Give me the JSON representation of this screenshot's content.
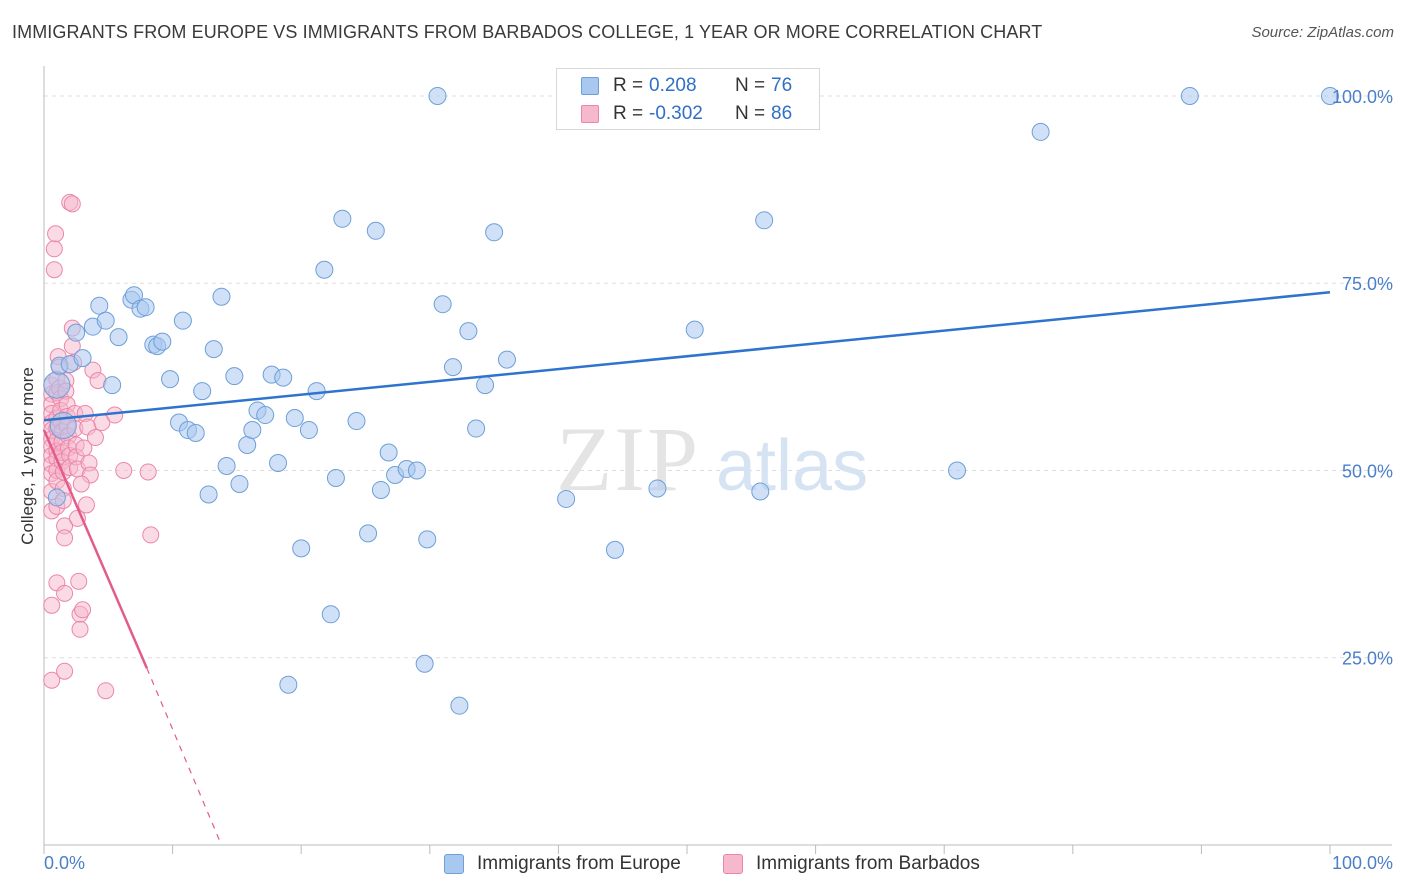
{
  "header": {
    "title": "IMMIGRANTS FROM EUROPE VS IMMIGRANTS FROM BARBADOS COLLEGE, 1 YEAR OR MORE CORRELATION CHART",
    "source": "Source: ZipAtlas.com"
  },
  "watermark": {
    "zip": "ZIP",
    "atlas": "atlas"
  },
  "legend_top": {
    "rows": [
      {
        "r_label": "R =",
        "r_value": "0.208",
        "n_label": "N =",
        "n_value": "76"
      },
      {
        "r_label": "R =",
        "r_value": "-0.302",
        "n_label": "N =",
        "n_value": "86"
      }
    ]
  },
  "colors": {
    "europe_fill": "#a9c8f0",
    "europe_stroke": "#6e9fd8",
    "europe_line": "#2f74cc",
    "barbados_fill": "#f6b8cc",
    "barbados_stroke": "#ec86a8",
    "barbados_line": "#e35b8a",
    "tick_label": "#4a7fc9",
    "grid": "#dddddd"
  },
  "chart_data": {
    "type": "scatter",
    "title": "IMMIGRANTS FROM EUROPE VS IMMIGRANTS FROM BARBADOS COLLEGE, 1 YEAR OR MORE CORRELATION CHART",
    "xlabel": "",
    "ylabel": "College, 1 year or more",
    "xlim": [
      0,
      100
    ],
    "ylim": [
      0,
      104
    ],
    "x_tick_labels": [
      "0.0%",
      "100.0%"
    ],
    "y_ticks": [
      25,
      50,
      75,
      100
    ],
    "y_tick_labels": [
      "25.0%",
      "50.0%",
      "75.0%",
      "100.0%"
    ],
    "legend_position": "bottom",
    "series": [
      {
        "name": "Immigrants from Europe",
        "r": 0.208,
        "n": 76,
        "trend": {
          "x": [
            0,
            100
          ],
          "y": [
            56.7,
            73.8
          ]
        },
        "points": [
          [
            1.0,
            61.4
          ],
          [
            1.5,
            56.0
          ],
          [
            1.0,
            46.4
          ],
          [
            1.2,
            64.0
          ],
          [
            2.0,
            64.2
          ],
          [
            3.0,
            65.0
          ],
          [
            2.5,
            68.4
          ],
          [
            3.8,
            69.2
          ],
          [
            4.3,
            72.0
          ],
          [
            4.8,
            70.0
          ],
          [
            5.3,
            61.4
          ],
          [
            5.8,
            67.8
          ],
          [
            6.8,
            72.8
          ],
          [
            7.0,
            73.4
          ],
          [
            7.5,
            71.6
          ],
          [
            7.9,
            71.8
          ],
          [
            8.5,
            66.8
          ],
          [
            8.8,
            66.6
          ],
          [
            9.2,
            67.2
          ],
          [
            9.8,
            62.2
          ],
          [
            10.5,
            56.4
          ],
          [
            10.8,
            70.0
          ],
          [
            11.2,
            55.4
          ],
          [
            11.8,
            55.0
          ],
          [
            12.3,
            60.6
          ],
          [
            12.8,
            46.8
          ],
          [
            13.2,
            66.2
          ],
          [
            13.8,
            73.2
          ],
          [
            14.2,
            50.6
          ],
          [
            14.8,
            62.6
          ],
          [
            15.2,
            48.2
          ],
          [
            15.8,
            53.4
          ],
          [
            16.2,
            55.4
          ],
          [
            16.6,
            58.0
          ],
          [
            17.2,
            57.4
          ],
          [
            17.7,
            62.8
          ],
          [
            18.2,
            51.0
          ],
          [
            18.6,
            62.4
          ],
          [
            19.0,
            21.4
          ],
          [
            19.5,
            57.0
          ],
          [
            20.0,
            39.6
          ],
          [
            20.6,
            55.4
          ],
          [
            21.2,
            60.6
          ],
          [
            21.8,
            76.8
          ],
          [
            22.3,
            30.8
          ],
          [
            22.7,
            49.0
          ],
          [
            23.2,
            83.6
          ],
          [
            24.3,
            56.6
          ],
          [
            25.2,
            41.6
          ],
          [
            25.8,
            82.0
          ],
          [
            26.2,
            47.4
          ],
          [
            26.8,
            52.4
          ],
          [
            27.3,
            49.4
          ],
          [
            28.2,
            50.2
          ],
          [
            29.0,
            50.0
          ],
          [
            29.6,
            24.2
          ],
          [
            29.8,
            40.8
          ],
          [
            30.6,
            100.0
          ],
          [
            31.0,
            72.2
          ],
          [
            31.8,
            63.8
          ],
          [
            32.3,
            18.6
          ],
          [
            33.0,
            68.6
          ],
          [
            33.6,
            55.6
          ],
          [
            34.3,
            61.4
          ],
          [
            35.0,
            81.8
          ],
          [
            36.0,
            64.8
          ],
          [
            40.6,
            46.2
          ],
          [
            44.4,
            39.4
          ],
          [
            47.7,
            47.6
          ],
          [
            50.6,
            68.8
          ],
          [
            55.7,
            47.2
          ],
          [
            56.0,
            83.4
          ],
          [
            71.0,
            50.0
          ],
          [
            77.5,
            95.2
          ],
          [
            89.1,
            100.0
          ],
          [
            100.0,
            100.0
          ]
        ]
      },
      {
        "name": "Immigrants from Barbados",
        "r": -0.302,
        "n": 86,
        "trend": {
          "x": [
            0,
            8.0
          ],
          "y": [
            55.4,
            23.6
          ]
        },
        "trend_dashed": {
          "x": [
            8.0,
            13.8
          ],
          "y": [
            23.6,
            0
          ]
        },
        "points": [
          [
            0.6,
            61.4
          ],
          [
            0.6,
            60.2
          ],
          [
            0.6,
            58.8
          ],
          [
            0.6,
            57.6
          ],
          [
            0.6,
            56.4
          ],
          [
            0.6,
            55.4
          ],
          [
            0.6,
            54.2
          ],
          [
            0.6,
            53.2
          ],
          [
            0.6,
            52.0
          ],
          [
            0.6,
            50.8
          ],
          [
            0.6,
            49.6
          ],
          [
            0.6,
            47.2
          ],
          [
            0.6,
            44.6
          ],
          [
            0.6,
            32.0
          ],
          [
            0.6,
            22.0
          ],
          [
            0.8,
            79.6
          ],
          [
            0.8,
            76.8
          ],
          [
            0.9,
            81.6
          ],
          [
            1.0,
            62.2
          ],
          [
            1.0,
            60.4
          ],
          [
            1.0,
            57.0
          ],
          [
            1.0,
            55.6
          ],
          [
            1.0,
            54.0
          ],
          [
            1.0,
            52.6
          ],
          [
            1.0,
            51.6
          ],
          [
            1.0,
            50.0
          ],
          [
            1.0,
            48.6
          ],
          [
            1.0,
            45.2
          ],
          [
            1.0,
            35.0
          ],
          [
            1.1,
            65.2
          ],
          [
            1.2,
            63.8
          ],
          [
            1.2,
            61.0
          ],
          [
            1.3,
            59.6
          ],
          [
            1.3,
            58.0
          ],
          [
            1.3,
            56.6
          ],
          [
            1.4,
            55.2
          ],
          [
            1.4,
            53.8
          ],
          [
            1.4,
            52.4
          ],
          [
            1.4,
            51.2
          ],
          [
            1.5,
            49.8
          ],
          [
            1.5,
            47.6
          ],
          [
            1.5,
            46.0
          ],
          [
            1.6,
            42.6
          ],
          [
            1.6,
            41.0
          ],
          [
            1.6,
            23.2
          ],
          [
            1.6,
            33.6
          ],
          [
            1.7,
            62.0
          ],
          [
            1.7,
            60.6
          ],
          [
            1.8,
            58.8
          ],
          [
            1.8,
            57.2
          ],
          [
            1.8,
            56.0
          ],
          [
            1.9,
            54.6
          ],
          [
            1.9,
            53.0
          ],
          [
            2.0,
            52.0
          ],
          [
            2.0,
            50.4
          ],
          [
            2.0,
            85.8
          ],
          [
            2.2,
            85.6
          ],
          [
            2.2,
            69.0
          ],
          [
            2.2,
            66.6
          ],
          [
            2.3,
            64.4
          ],
          [
            2.4,
            57.6
          ],
          [
            2.4,
            55.6
          ],
          [
            2.5,
            53.4
          ],
          [
            2.5,
            51.8
          ],
          [
            2.6,
            50.2
          ],
          [
            2.6,
            43.6
          ],
          [
            2.7,
            35.2
          ],
          [
            2.8,
            30.8
          ],
          [
            2.8,
            28.8
          ],
          [
            3.0,
            31.4
          ],
          [
            3.1,
            53.0
          ],
          [
            3.2,
            57.6
          ],
          [
            3.4,
            55.8
          ],
          [
            3.5,
            51.0
          ],
          [
            3.6,
            49.4
          ],
          [
            3.8,
            63.4
          ],
          [
            4.0,
            54.4
          ],
          [
            4.2,
            62.0
          ],
          [
            4.5,
            56.4
          ],
          [
            4.8,
            20.6
          ],
          [
            5.5,
            57.4
          ],
          [
            6.2,
            50.0
          ],
          [
            8.1,
            49.8
          ],
          [
            8.3,
            41.4
          ],
          [
            2.9,
            48.2
          ],
          [
            3.3,
            45.4
          ]
        ]
      }
    ]
  },
  "legend_bottom": {
    "items": [
      {
        "label": "Immigrants from Europe"
      },
      {
        "label": "Immigrants from Barbados"
      }
    ]
  }
}
